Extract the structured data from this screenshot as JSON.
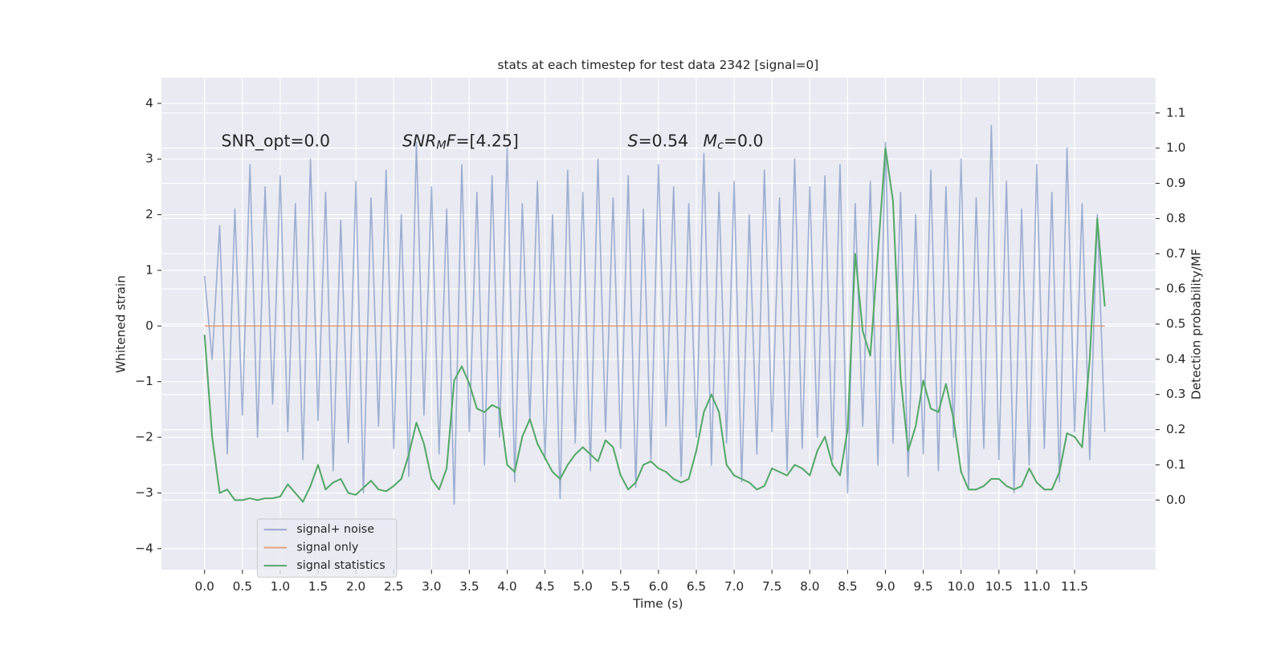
{
  "chart_data": {
    "type": "line",
    "title": "stats at each timestep for test data 2342 [signal=0]",
    "xlabel": "Time (s)",
    "ylabel": "Whitened strain",
    "y2label": "Detection probability/MF",
    "annotations": [
      [
        {
          "text": "SNR_opt=0.0"
        }
      ],
      [
        {
          "text": "SNR",
          "italic": true
        },
        {
          "text": "M",
          "italic": true,
          "sub": true
        },
        {
          "text": "F",
          "italic": true
        },
        {
          "text": "=[4.25]"
        }
      ],
      [
        {
          "text": "S",
          "italic": true
        },
        {
          "text": "=0.54"
        }
      ],
      [
        {
          "text": "M",
          "italic": true
        },
        {
          "text": "c",
          "italic": true,
          "sub": true
        },
        {
          "text": "=0.0"
        }
      ]
    ],
    "x": [
      0,
      0.1,
      0.2,
      0.3,
      0.4,
      0.5,
      0.6,
      0.7,
      0.8,
      0.9,
      1.0,
      1.1,
      1.2,
      1.3,
      1.4,
      1.5,
      1.6,
      1.7,
      1.8,
      1.9,
      2.0,
      2.1,
      2.2,
      2.3,
      2.4,
      2.5,
      2.6,
      2.7,
      2.8,
      2.9,
      3.0,
      3.1,
      3.2,
      3.3,
      3.4,
      3.5,
      3.6,
      3.7,
      3.8,
      3.9,
      4.0,
      4.1,
      4.2,
      4.3,
      4.4,
      4.5,
      4.6,
      4.7,
      4.8,
      4.9,
      5.0,
      5.1,
      5.2,
      5.3,
      5.4,
      5.5,
      5.6,
      5.7,
      5.8,
      5.9,
      6.0,
      6.1,
      6.2,
      6.3,
      6.4,
      6.5,
      6.6,
      6.7,
      6.8,
      6.9,
      7.0,
      7.1,
      7.2,
      7.3,
      7.4,
      7.5,
      7.6,
      7.7,
      7.8,
      7.9,
      8.0,
      8.1,
      8.2,
      8.3,
      8.4,
      8.5,
      8.6,
      8.7,
      8.8,
      8.9,
      9.0,
      9.1,
      9.2,
      9.3,
      9.4,
      9.5,
      9.6,
      9.7,
      9.8,
      9.9,
      10.0,
      10.1,
      10.2,
      10.3,
      10.4,
      10.5,
      10.6,
      10.7,
      10.8,
      10.9,
      11.0,
      11.1,
      11.2,
      11.3,
      11.4,
      11.5,
      11.6,
      11.7,
      11.8,
      11.9
    ],
    "series": [
      {
        "name": "signal+ noise",
        "color": "#4c72b0",
        "opacity": 0.5,
        "values": [
          0.9,
          -0.6,
          1.8,
          -2.3,
          2.1,
          -1.6,
          2.9,
          -2.0,
          2.5,
          -1.4,
          2.7,
          -1.9,
          2.2,
          -2.4,
          3.0,
          -1.7,
          2.4,
          -2.6,
          1.9,
          -2.1,
          2.6,
          -3.0,
          2.3,
          -1.8,
          2.8,
          -2.2,
          2.0,
          -2.7,
          3.3,
          -1.6,
          2.5,
          -2.3,
          2.1,
          -3.2,
          2.9,
          -1.9,
          2.4,
          -2.5,
          2.7,
          -2.0,
          3.2,
          -2.8,
          2.2,
          -1.7,
          2.6,
          -2.4,
          2.0,
          -3.1,
          2.8,
          -2.1,
          2.4,
          -2.6,
          3.0,
          -1.9,
          2.3,
          -2.2,
          2.7,
          -2.9,
          2.1,
          -2.4,
          2.9,
          -1.8,
          2.5,
          -2.7,
          2.2,
          -2.0,
          3.1,
          -2.5,
          2.4,
          -2.1,
          2.6,
          -2.8,
          2.0,
          -2.3,
          2.8,
          -1.9,
          2.3,
          -2.6,
          3.0,
          -2.2,
          2.5,
          -2.0,
          2.7,
          -2.4,
          2.9,
          -3.0,
          2.2,
          -1.8,
          2.6,
          -2.5,
          3.3,
          -2.1,
          2.4,
          -2.7,
          2.0,
          -2.3,
          2.8,
          -2.6,
          2.5,
          -2.0,
          3.0,
          -2.9,
          2.3,
          -2.2,
          3.6,
          -2.4,
          2.6,
          -3.0,
          2.1,
          -2.5,
          2.9,
          -2.2,
          2.4,
          -2.8,
          3.2,
          -1.9,
          2.2,
          -2.4,
          2.0,
          -1.9
        ]
      },
      {
        "name": "signal only",
        "color": "#dd8452",
        "opacity": 0.7,
        "values": [
          0,
          0,
          0,
          0,
          0,
          0,
          0,
          0,
          0,
          0,
          0,
          0,
          0,
          0,
          0,
          0,
          0,
          0,
          0,
          0,
          0,
          0,
          0,
          0,
          0,
          0,
          0,
          0,
          0,
          0,
          0,
          0,
          0,
          0,
          0,
          0,
          0,
          0,
          0,
          0,
          0,
          0,
          0,
          0,
          0,
          0,
          0,
          0,
          0,
          0,
          0,
          0,
          0,
          0,
          0,
          0,
          0,
          0,
          0,
          0,
          0,
          0,
          0,
          0,
          0,
          0,
          0,
          0,
          0,
          0,
          0,
          0,
          0,
          0,
          0,
          0,
          0,
          0,
          0,
          0,
          0,
          0,
          0,
          0,
          0,
          0,
          0,
          0,
          0,
          0,
          0,
          0,
          0,
          0,
          0,
          0,
          0,
          0,
          0,
          0,
          0,
          0,
          0,
          0,
          0,
          0,
          0,
          0,
          0,
          0,
          0,
          0,
          0,
          0,
          0,
          0,
          0,
          0,
          0,
          0
        ]
      },
      {
        "name": "signal statistics",
        "color": "#55a868",
        "opacity": 1,
        "axis": "y2",
        "values": [
          0.47,
          0.18,
          0.02,
          0.03,
          0.0,
          0.0,
          0.005,
          0.0,
          0.005,
          0.005,
          0.01,
          0.045,
          0.02,
          -0.005,
          0.04,
          0.1,
          0.03,
          0.05,
          0.06,
          0.02,
          0.015,
          0.035,
          0.055,
          0.03,
          0.025,
          0.04,
          0.06,
          0.13,
          0.22,
          0.16,
          0.06,
          0.03,
          0.09,
          0.34,
          0.38,
          0.33,
          0.26,
          0.25,
          0.27,
          0.26,
          0.1,
          0.08,
          0.18,
          0.23,
          0.16,
          0.12,
          0.08,
          0.06,
          0.1,
          0.13,
          0.15,
          0.13,
          0.11,
          0.17,
          0.15,
          0.07,
          0.03,
          0.05,
          0.1,
          0.11,
          0.09,
          0.08,
          0.06,
          0.05,
          0.06,
          0.14,
          0.25,
          0.3,
          0.25,
          0.1,
          0.07,
          0.06,
          0.05,
          0.03,
          0.04,
          0.09,
          0.08,
          0.07,
          0.1,
          0.09,
          0.07,
          0.14,
          0.18,
          0.1,
          0.07,
          0.2,
          0.7,
          0.48,
          0.41,
          0.7,
          1.0,
          0.85,
          0.35,
          0.14,
          0.21,
          0.34,
          0.26,
          0.25,
          0.33,
          0.23,
          0.08,
          0.03,
          0.03,
          0.04,
          0.06,
          0.06,
          0.04,
          0.03,
          0.04,
          0.09,
          0.05,
          0.03,
          0.03,
          0.08,
          0.19,
          0.18,
          0.15,
          0.4,
          0.8,
          0.55
        ]
      }
    ],
    "xlim": [
      -0.57,
      12.57
    ],
    "xticks": [
      {
        "value": 0,
        "label": "0.0"
      },
      0.5,
      {
        "value": 1,
        "label": "1.0"
      },
      1.5,
      {
        "value": 2,
        "label": "2.0"
      },
      2.5,
      {
        "value": 3,
        "label": "3.0"
      },
      3.5,
      {
        "value": 4,
        "label": "4.0"
      },
      4.5,
      {
        "value": 5,
        "label": "5.0"
      },
      5.5,
      {
        "value": 6,
        "label": "6.0"
      },
      6.5,
      {
        "value": 7,
        "label": "7.0"
      },
      7.5,
      {
        "value": 8,
        "label": "8.0"
      },
      8.5,
      {
        "value": 9,
        "label": "9.0"
      },
      9.5,
      {
        "value": 10,
        "label": "10.0"
      },
      10.5,
      {
        "value": 11,
        "label": "11.0"
      },
      11.5
    ],
    "ylim": [
      -4.38,
      4.46
    ],
    "yticks": [
      {
        "value": -4,
        "label": "−4"
      },
      {
        "value": -3,
        "label": "−3"
      },
      {
        "value": -2,
        "label": "−2"
      },
      {
        "value": -1,
        "label": "−1"
      },
      0,
      1,
      2,
      3,
      4
    ],
    "y2lim": [
      -0.198,
      1.2
    ],
    "y2ticks": [
      {
        "value": 0,
        "label": "0.0"
      },
      0.1,
      0.2,
      0.3,
      0.4,
      0.5,
      0.6,
      0.7,
      0.8,
      0.9,
      {
        "value": 1,
        "label": "1.0"
      },
      1.1
    ],
    "grid": true,
    "legend": "lower left"
  }
}
